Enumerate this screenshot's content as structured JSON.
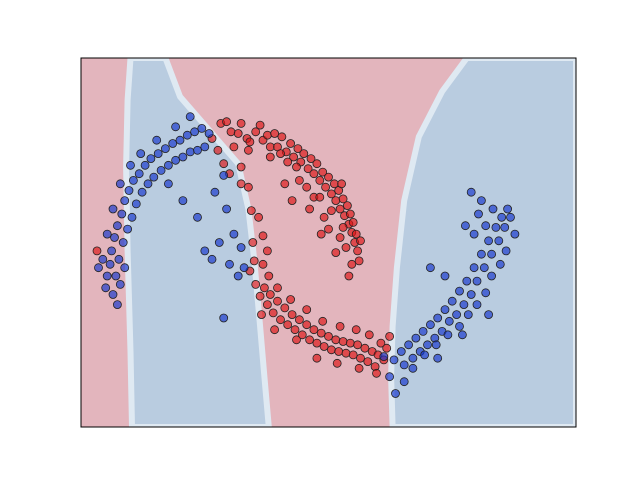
{
  "chart_data": {
    "type": "scatter",
    "title": "",
    "xlabel": "",
    "ylabel": "",
    "xlim": [
      -1.2,
      2.2
    ],
    "ylim": [
      -0.85,
      1.35
    ],
    "grid": false,
    "ticks_visible": false,
    "colors": {
      "class_0_fill": "#dd1111",
      "class_1_fill": "#1133cc",
      "region_0_fill": "#e3b5bd",
      "region_1_fill": "#b9cce0",
      "marker_edge": "#222222"
    },
    "decision_boundary": [
      {
        "x": -0.85,
        "y": 1.35
      },
      {
        "x": -0.88,
        "y": 0.95
      },
      {
        "x": -0.87,
        "y": 0.55
      },
      {
        "x": -0.86,
        "y": 0.15
      },
      {
        "x": -0.85,
        "y": -0.45
      },
      {
        "x": -0.85,
        "y": -0.85
      }
    ],
    "series": [
      {
        "class": 0,
        "points": [
          [
            -0.3,
            0.87
          ],
          [
            -0.24,
            0.96
          ],
          [
            -0.2,
            0.97
          ],
          [
            -0.17,
            0.91
          ],
          [
            -0.12,
            0.9
          ],
          [
            -0.1,
            0.96
          ],
          [
            -0.06,
            0.87
          ],
          [
            -0.04,
            0.85
          ],
          [
            0.0,
            0.91
          ],
          [
            0.03,
            0.95
          ],
          [
            0.05,
            0.86
          ],
          [
            0.08,
            0.89
          ],
          [
            0.1,
            0.82
          ],
          [
            0.13,
            0.9
          ],
          [
            0.15,
            0.82
          ],
          [
            0.18,
            0.88
          ],
          [
            0.21,
            0.79
          ],
          [
            0.24,
            0.84
          ],
          [
            0.26,
            0.76
          ],
          [
            0.29,
            0.81
          ],
          [
            0.31,
            0.73
          ],
          [
            0.33,
            0.78
          ],
          [
            0.36,
            0.69
          ],
          [
            0.38,
            0.75
          ],
          [
            0.4,
            0.66
          ],
          [
            0.42,
            0.72
          ],
          [
            0.44,
            0.62
          ],
          [
            0.46,
            0.67
          ],
          [
            0.48,
            0.58
          ],
          [
            0.5,
            0.64
          ],
          [
            0.52,
            0.54
          ],
          [
            0.54,
            0.6
          ],
          [
            0.55,
            0.5
          ],
          [
            0.57,
            0.56
          ],
          [
            0.58,
            0.45
          ],
          [
            0.6,
            0.51
          ],
          [
            0.61,
            0.41
          ],
          [
            0.63,
            0.47
          ],
          [
            0.64,
            0.36
          ],
          [
            0.65,
            0.42
          ],
          [
            0.66,
            0.31
          ],
          [
            0.67,
            0.37
          ],
          [
            0.68,
            0.25
          ],
          [
            0.69,
            0.3
          ],
          [
            0.7,
            0.2
          ],
          [
            0.71,
            0.14
          ],
          [
            0.62,
            0.22
          ],
          [
            0.58,
            0.28
          ],
          [
            0.55,
            0.19
          ],
          [
            0.5,
            0.33
          ],
          [
            0.47,
            0.4
          ],
          [
            0.45,
            0.3
          ],
          [
            0.4,
            0.52
          ],
          [
            0.37,
            0.45
          ],
          [
            0.35,
            0.58
          ],
          [
            0.28,
            0.7
          ],
          [
            0.22,
            0.73
          ],
          [
            0.17,
            0.78
          ],
          [
            0.1,
            0.76
          ],
          [
            -0.05,
            0.8
          ],
          [
            -0.15,
            0.82
          ],
          [
            -0.26,
            0.8
          ],
          [
            -1.09,
            0.2
          ],
          [
            -0.22,
            0.72
          ],
          [
            -0.1,
            0.7
          ],
          [
            -0.05,
            0.58
          ],
          [
            -0.03,
            0.44
          ],
          [
            -0.02,
            0.25
          ],
          [
            0.02,
            0.4
          ],
          [
            0.05,
            0.29
          ],
          [
            -0.01,
            0.14
          ],
          [
            -0.04,
            0.08
          ],
          [
            0.0,
            0.0
          ],
          [
            0.03,
            -0.07
          ],
          [
            0.06,
            -0.02
          ],
          [
            0.08,
            -0.12
          ],
          [
            0.1,
            -0.06
          ],
          [
            0.12,
            -0.17
          ],
          [
            0.15,
            -0.1
          ],
          [
            0.17,
            -0.21
          ],
          [
            0.2,
            -0.14
          ],
          [
            0.22,
            -0.24
          ],
          [
            0.25,
            -0.18
          ],
          [
            0.27,
            -0.27
          ],
          [
            0.3,
            -0.21
          ],
          [
            0.32,
            -0.3
          ],
          [
            0.35,
            -0.24
          ],
          [
            0.37,
            -0.33
          ],
          [
            0.4,
            -0.27
          ],
          [
            0.42,
            -0.35
          ],
          [
            0.45,
            -0.29
          ],
          [
            0.47,
            -0.37
          ],
          [
            0.5,
            -0.31
          ],
          [
            0.52,
            -0.39
          ],
          [
            0.55,
            -0.33
          ],
          [
            0.57,
            -0.4
          ],
          [
            0.6,
            -0.34
          ],
          [
            0.62,
            -0.41
          ],
          [
            0.65,
            -0.35
          ],
          [
            0.67,
            -0.42
          ],
          [
            0.7,
            -0.36
          ],
          [
            0.72,
            -0.44
          ],
          [
            0.75,
            -0.38
          ],
          [
            0.77,
            -0.46
          ],
          [
            0.8,
            -0.4
          ],
          [
            0.82,
            -0.49
          ],
          [
            0.84,
            -0.42
          ],
          [
            0.86,
            -0.35
          ],
          [
            0.88,
            -0.45
          ],
          [
            0.9,
            -0.38
          ],
          [
            0.92,
            -0.31
          ],
          [
            0.78,
            -0.3
          ],
          [
            0.69,
            -0.27
          ],
          [
            0.58,
            -0.25
          ],
          [
            0.46,
            -0.22
          ],
          [
            0.35,
            -0.15
          ],
          [
            0.24,
            -0.09
          ],
          [
            0.15,
            -0.02
          ],
          [
            0.09,
            0.05
          ],
          [
            0.05,
            0.12
          ],
          [
            0.13,
            -0.27
          ],
          [
            0.28,
            -0.33
          ],
          [
            0.42,
            -0.44
          ],
          [
            0.56,
            -0.47
          ],
          [
            0.71,
            -0.5
          ],
          [
            0.83,
            -0.53
          ],
          [
            0.25,
            0.5
          ],
          [
            0.2,
            0.6
          ],
          [
            0.3,
            0.62
          ],
          [
            0.44,
            0.52
          ],
          [
            0.52,
            0.44
          ],
          [
            0.6,
            0.34
          ],
          [
            0.66,
            0.12
          ],
          [
            0.64,
            0.05
          ],
          [
            -0.1,
            0.6
          ],
          [
            -0.18,
            0.66
          ],
          [
            0.72,
            0.26
          ],
          [
            0.59,
            0.6
          ],
          [
            0.08,
            0.2
          ],
          [
            0.04,
            -0.18
          ]
        ]
      },
      {
        "class": 1,
        "points": [
          [
            -1.02,
            0.05
          ],
          [
            -1.0,
            0.12
          ],
          [
            -0.99,
            0.2
          ],
          [
            -0.97,
            0.28
          ],
          [
            -0.96,
            0.05
          ],
          [
            -0.95,
            0.35
          ],
          [
            -0.94,
            0.15
          ],
          [
            -0.92,
            0.42
          ],
          [
            -0.91,
            0.25
          ],
          [
            -0.9,
            0.5
          ],
          [
            -0.88,
            0.33
          ],
          [
            -0.87,
            0.56
          ],
          [
            -0.85,
            0.4
          ],
          [
            -0.84,
            0.62
          ],
          [
            -0.82,
            0.48
          ],
          [
            -0.8,
            0.66
          ],
          [
            -0.78,
            0.55
          ],
          [
            -0.76,
            0.71
          ],
          [
            -0.74,
            0.6
          ],
          [
            -0.72,
            0.75
          ],
          [
            -0.7,
            0.64
          ],
          [
            -0.67,
            0.78
          ],
          [
            -0.65,
            0.68
          ],
          [
            -0.62,
            0.81
          ],
          [
            -0.6,
            0.71
          ],
          [
            -0.57,
            0.84
          ],
          [
            -0.55,
            0.74
          ],
          [
            -0.52,
            0.86
          ],
          [
            -0.5,
            0.76
          ],
          [
            -0.47,
            0.89
          ],
          [
            -0.45,
            0.79
          ],
          [
            -0.42,
            0.91
          ],
          [
            -0.4,
            0.8
          ],
          [
            -0.37,
            0.93
          ],
          [
            -0.35,
            0.82
          ],
          [
            -0.32,
            0.9
          ],
          [
            -0.45,
            1.0
          ],
          [
            -0.55,
            0.94
          ],
          [
            -0.68,
            0.86
          ],
          [
            -0.79,
            0.78
          ],
          [
            -0.86,
            0.71
          ],
          [
            -0.93,
            0.6
          ],
          [
            -0.98,
            0.45
          ],
          [
            -1.02,
            0.3
          ],
          [
            -1.05,
            0.15
          ],
          [
            -1.08,
            0.1
          ],
          [
            -1.03,
            -0.02
          ],
          [
            -0.98,
            -0.06
          ],
          [
            -0.93,
            0.0
          ],
          [
            -0.9,
            0.1
          ],
          [
            -0.95,
            -0.12
          ],
          [
            -0.6,
            0.6
          ],
          [
            -0.5,
            0.5
          ],
          [
            -0.4,
            0.4
          ],
          [
            -0.35,
            0.2
          ],
          [
            -0.3,
            0.15
          ],
          [
            -0.25,
            0.25
          ],
          [
            -0.2,
            0.45
          ],
          [
            -0.22,
            0.65
          ],
          [
            -0.28,
            0.55
          ],
          [
            -0.18,
            0.12
          ],
          [
            -0.15,
            0.3
          ],
          [
            -0.1,
            0.22
          ],
          [
            -0.08,
            0.1
          ],
          [
            -0.12,
            0.05
          ],
          [
            -0.22,
            -0.2
          ],
          [
            0.92,
            -0.55
          ],
          [
            0.88,
            -0.43
          ],
          [
            0.95,
            -0.45
          ],
          [
            1.0,
            -0.4
          ],
          [
            1.02,
            -0.48
          ],
          [
            1.05,
            -0.36
          ],
          [
            1.08,
            -0.44
          ],
          [
            1.1,
            -0.32
          ],
          [
            1.13,
            -0.4
          ],
          [
            1.15,
            -0.28
          ],
          [
            1.18,
            -0.36
          ],
          [
            1.2,
            -0.24
          ],
          [
            1.23,
            -0.32
          ],
          [
            1.25,
            -0.2
          ],
          [
            1.28,
            -0.28
          ],
          [
            1.3,
            -0.15
          ],
          [
            1.33,
            -0.22
          ],
          [
            1.35,
            -0.1
          ],
          [
            1.38,
            -0.18
          ],
          [
            1.4,
            -0.04
          ],
          [
            1.43,
            -0.12
          ],
          [
            1.45,
            0.02
          ],
          [
            1.48,
            -0.06
          ],
          [
            1.5,
            0.1
          ],
          [
            1.52,
            0.02
          ],
          [
            1.55,
            0.18
          ],
          [
            1.57,
            0.1
          ],
          [
            1.6,
            0.26
          ],
          [
            1.62,
            0.18
          ],
          [
            1.65,
            0.34
          ],
          [
            1.67,
            0.26
          ],
          [
            1.69,
            0.4
          ],
          [
            1.71,
            0.34
          ],
          [
            1.73,
            0.45
          ],
          [
            1.75,
            0.4
          ],
          [
            1.78,
            0.3
          ],
          [
            1.72,
            0.2
          ],
          [
            1.68,
            0.12
          ],
          [
            1.62,
            0.05
          ],
          [
            1.58,
            -0.05
          ],
          [
            1.52,
            -0.12
          ],
          [
            1.46,
            -0.18
          ],
          [
            1.4,
            -0.25
          ],
          [
            1.32,
            -0.3
          ],
          [
            1.24,
            -0.36
          ],
          [
            1.16,
            -0.42
          ],
          [
            1.08,
            -0.5
          ],
          [
            1.02,
            -0.58
          ],
          [
            0.96,
            -0.65
          ],
          [
            1.5,
            0.3
          ],
          [
            1.58,
            0.35
          ],
          [
            1.63,
            0.45
          ],
          [
            1.55,
            0.5
          ],
          [
            1.48,
            0.55
          ],
          [
            1.53,
            0.42
          ],
          [
            1.44,
            0.35
          ],
          [
            1.2,
            0.1
          ],
          [
            1.3,
            0.05
          ],
          [
            1.6,
            -0.18
          ],
          [
            1.42,
            -0.3
          ],
          [
            1.25,
            -0.44
          ]
        ]
      }
    ]
  }
}
